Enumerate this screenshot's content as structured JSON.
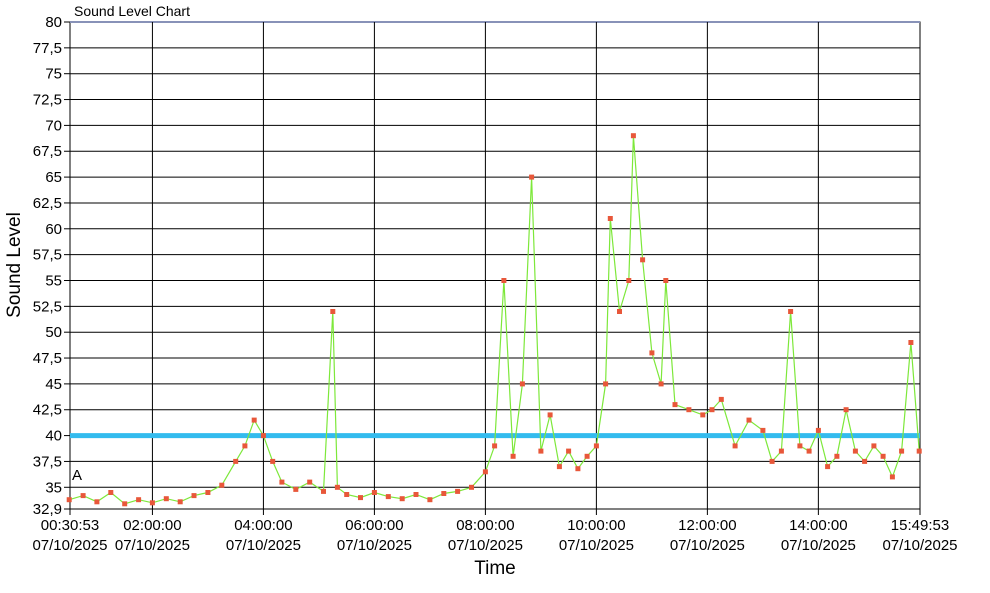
{
  "chart_data": {
    "type": "line",
    "title": "Sound Level Chart",
    "xlabel": "Time",
    "ylabel": "Sound Level",
    "ylim": [
      32.9,
      80
    ],
    "y_ticks": [
      "80",
      "77,5",
      "75",
      "72,5",
      "70",
      "67,5",
      "65",
      "62,5",
      "60",
      "57,5",
      "55",
      "52,5",
      "50",
      "47,5",
      "45",
      "42,5",
      "40",
      "37,5",
      "35",
      "32,9"
    ],
    "x_range": [
      "2025-07-10 00:30:53",
      "2025-07-10 15:49:53"
    ],
    "x_ticks": [
      {
        "time": "00:30:53",
        "date": "07/10/2025"
      },
      {
        "time": "02:00:00",
        "date": "07/10/2025"
      },
      {
        "time": "04:00:00",
        "date": "07/10/2025"
      },
      {
        "time": "06:00:00",
        "date": "07/10/2025"
      },
      {
        "time": "08:00:00",
        "date": "07/10/2025"
      },
      {
        "time": "10:00:00",
        "date": "07/10/2025"
      },
      {
        "time": "12:00:00",
        "date": "07/10/2025"
      },
      {
        "time": "14:00:00",
        "date": "07/10/2025"
      },
      {
        "time": "15:49:53",
        "date": "07/10/2025"
      }
    ],
    "grid": true,
    "threshold": {
      "value": 40,
      "color": "#33bbee"
    },
    "marker_label": "A",
    "series": [
      {
        "color": "#7de83a",
        "marker_color": "#e8573a",
        "points": [
          [
            "00:30",
            33.8
          ],
          [
            "00:45",
            34.2
          ],
          [
            "01:00",
            33.6
          ],
          [
            "01:15",
            34.5
          ],
          [
            "01:30",
            33.4
          ],
          [
            "01:45",
            33.8
          ],
          [
            "02:00",
            33.5
          ],
          [
            "02:15",
            33.9
          ],
          [
            "02:30",
            33.6
          ],
          [
            "02:45",
            34.2
          ],
          [
            "03:00",
            34.5
          ],
          [
            "03:15",
            35.2
          ],
          [
            "03:30",
            37.5
          ],
          [
            "03:40",
            39.0
          ],
          [
            "03:50",
            41.5
          ],
          [
            "04:00",
            40.0
          ],
          [
            "04:10",
            37.5
          ],
          [
            "04:20",
            35.5
          ],
          [
            "04:35",
            34.8
          ],
          [
            "04:50",
            35.5
          ],
          [
            "05:05",
            34.6
          ],
          [
            "05:15",
            52.0
          ],
          [
            "05:20",
            35.0
          ],
          [
            "05:30",
            34.3
          ],
          [
            "05:45",
            34.0
          ],
          [
            "06:00",
            34.5
          ],
          [
            "06:15",
            34.1
          ],
          [
            "06:30",
            33.9
          ],
          [
            "06:45",
            34.3
          ],
          [
            "07:00",
            33.8
          ],
          [
            "07:15",
            34.4
          ],
          [
            "07:30",
            34.6
          ],
          [
            "07:45",
            35.0
          ],
          [
            "08:00",
            36.5
          ],
          [
            "08:10",
            39.0
          ],
          [
            "08:20",
            55.0
          ],
          [
            "08:30",
            38.0
          ],
          [
            "08:40",
            45.0
          ],
          [
            "08:50",
            65.0
          ],
          [
            "09:00",
            38.5
          ],
          [
            "09:10",
            42.0
          ],
          [
            "09:20",
            37.0
          ],
          [
            "09:30",
            38.5
          ],
          [
            "09:40",
            36.8
          ],
          [
            "09:50",
            38.0
          ],
          [
            "10:00",
            39.0
          ],
          [
            "10:10",
            45.0
          ],
          [
            "10:15",
            61.0
          ],
          [
            "10:25",
            52.0
          ],
          [
            "10:35",
            55.0
          ],
          [
            "10:40",
            69.0
          ],
          [
            "10:50",
            57.0
          ],
          [
            "11:00",
            48.0
          ],
          [
            "11:10",
            45.0
          ],
          [
            "11:15",
            55.0
          ],
          [
            "11:25",
            43.0
          ],
          [
            "11:40",
            42.5
          ],
          [
            "11:55",
            42.0
          ],
          [
            "12:05",
            42.5
          ],
          [
            "12:15",
            43.5
          ],
          [
            "12:30",
            39.0
          ],
          [
            "12:45",
            41.5
          ],
          [
            "13:00",
            40.5
          ],
          [
            "13:10",
            37.5
          ],
          [
            "13:20",
            38.5
          ],
          [
            "13:30",
            52.0
          ],
          [
            "13:40",
            39.0
          ],
          [
            "13:50",
            38.5
          ],
          [
            "14:00",
            40.5
          ],
          [
            "14:10",
            37.0
          ],
          [
            "14:20",
            38.0
          ],
          [
            "14:30",
            42.5
          ],
          [
            "14:40",
            38.5
          ],
          [
            "14:50",
            37.5
          ],
          [
            "15:00",
            39.0
          ],
          [
            "15:10",
            38.0
          ],
          [
            "15:20",
            36.0
          ],
          [
            "15:30",
            38.5
          ],
          [
            "15:40",
            49.0
          ],
          [
            "15:49",
            38.5
          ]
        ]
      }
    ]
  }
}
